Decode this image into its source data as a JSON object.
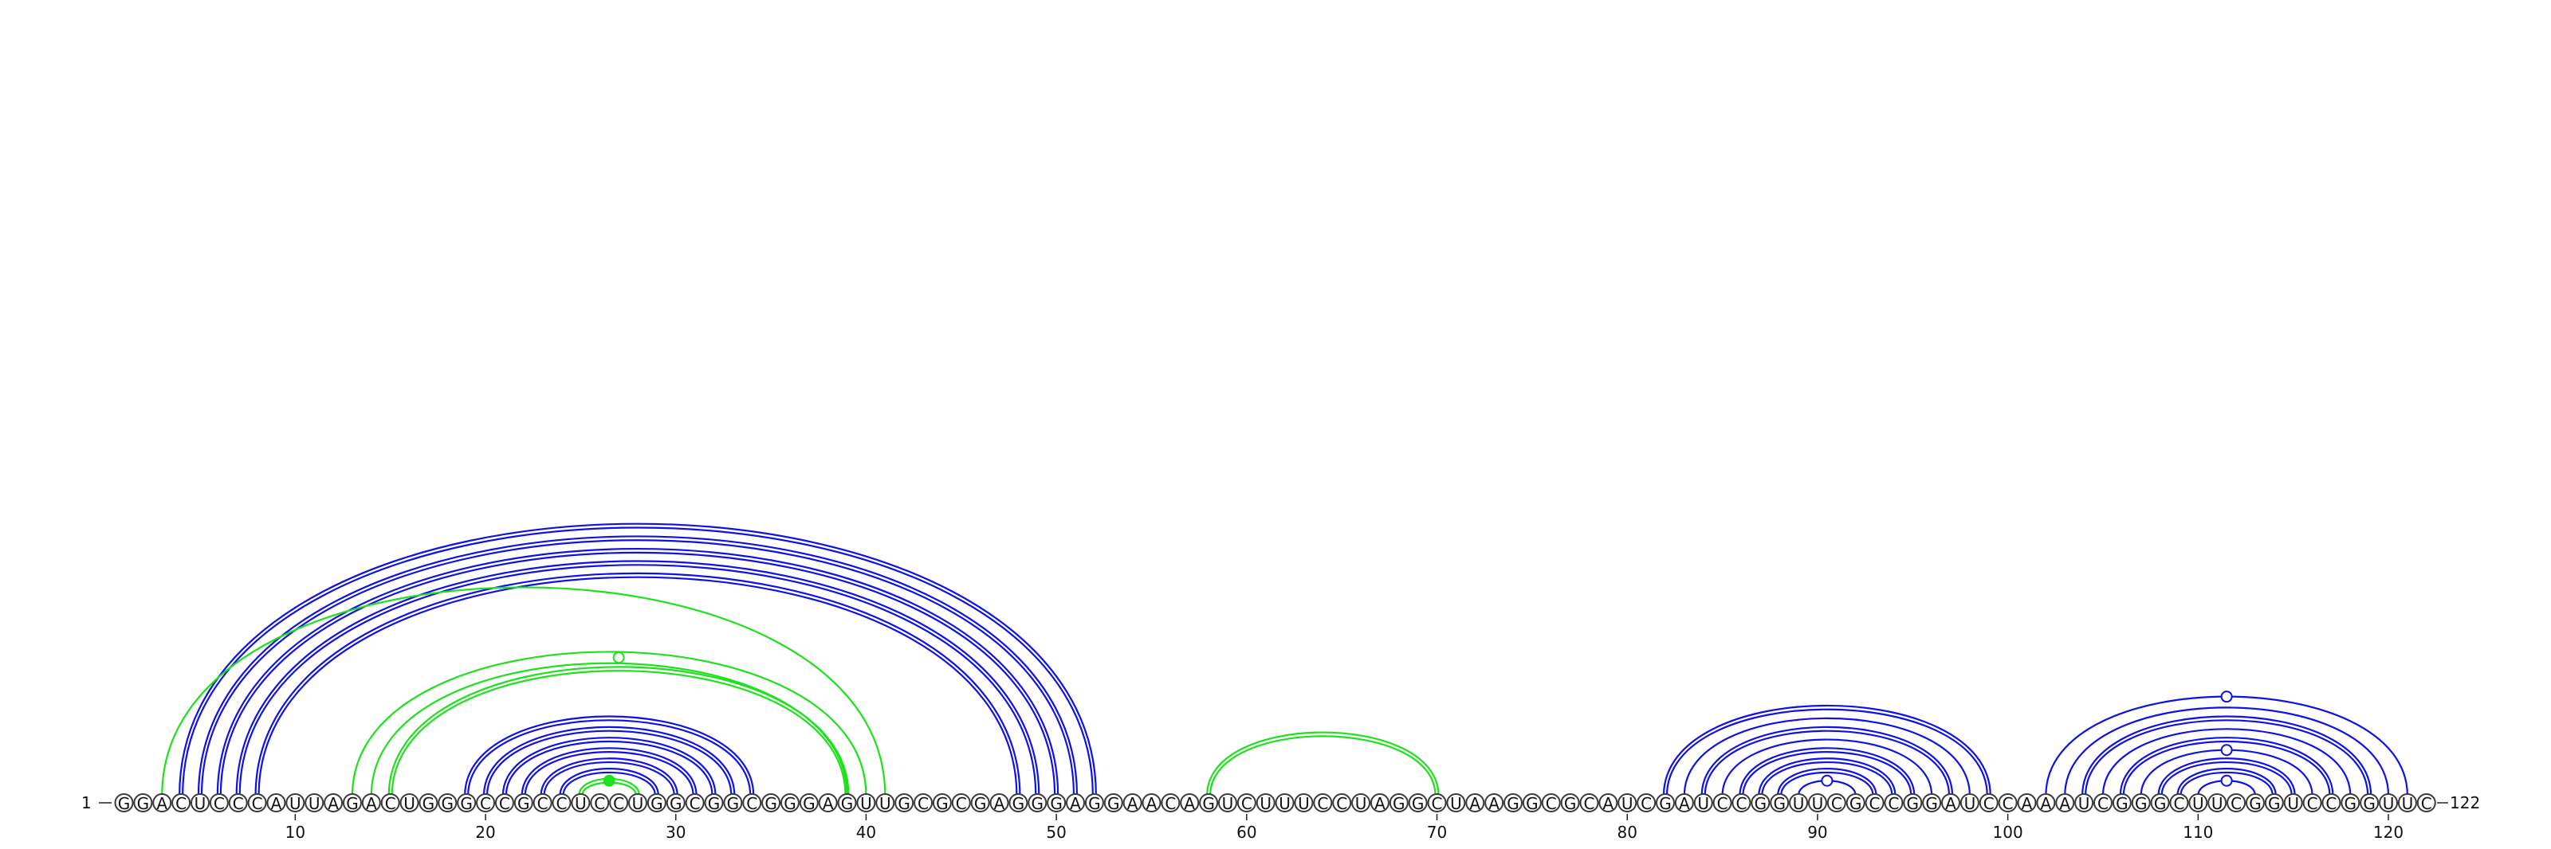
{
  "sequence": "GGACUCCCAUUAGACUGGGCCGCCUCCUGGCGGCGGGAGUUGCGCGAGGGAGGAACAGUCUUUCCUAGGCUAAGGCGCAUCGAUCCGGUUCGCCGGAUCCAAAUCGGGCUUCGGUCCGGUUC",
  "start_label": "1",
  "end_label": "122",
  "tick_labels": [
    "10",
    "20",
    "30",
    "40",
    "50",
    "60",
    "70",
    "80",
    "90",
    "100",
    "110",
    "120"
  ],
  "colors": {
    "blue": "#1010e8",
    "green": "#1ee11e"
  },
  "arcs": [
    {
      "i": 4,
      "j": 52,
      "color": "blue",
      "lines": 2
    },
    {
      "i": 5,
      "j": 51,
      "color": "blue",
      "lines": 2
    },
    {
      "i": 6,
      "j": 50,
      "color": "blue",
      "lines": 2
    },
    {
      "i": 7,
      "j": 49,
      "color": "blue",
      "lines": 2
    },
    {
      "i": 8,
      "j": 48,
      "color": "blue",
      "lines": 2
    },
    {
      "i": 3,
      "j": 41,
      "color": "green",
      "lines": 1
    },
    {
      "i": 13,
      "j": 40,
      "color": "green",
      "lines": 1
    },
    {
      "i": 14,
      "j": 39,
      "color": "green",
      "lines": 1
    },
    {
      "i": 15,
      "j": 39,
      "color": "green",
      "lines": 2
    },
    {
      "i": 19,
      "j": 34,
      "color": "blue",
      "lines": 2
    },
    {
      "i": 20,
      "j": 33,
      "color": "blue",
      "lines": 2
    },
    {
      "i": 21,
      "j": 32,
      "color": "blue",
      "lines": 2
    },
    {
      "i": 22,
      "j": 31,
      "color": "blue",
      "lines": 2
    },
    {
      "i": 23,
      "j": 30,
      "color": "blue",
      "lines": 2
    },
    {
      "i": 24,
      "j": 29,
      "color": "blue",
      "lines": 2
    },
    {
      "i": 25,
      "j": 28,
      "color": "green",
      "lines": 2
    },
    {
      "i": 58,
      "j": 70,
      "color": "green",
      "lines": 2
    },
    {
      "i": 82,
      "j": 99,
      "color": "blue",
      "lines": 2
    },
    {
      "i": 83,
      "j": 98,
      "color": "blue",
      "lines": 1
    },
    {
      "i": 84,
      "j": 97,
      "color": "blue",
      "lines": 2
    },
    {
      "i": 85,
      "j": 96,
      "color": "blue",
      "lines": 1
    },
    {
      "i": 86,
      "j": 95,
      "color": "blue",
      "lines": 2
    },
    {
      "i": 87,
      "j": 94,
      "color": "blue",
      "lines": 2
    },
    {
      "i": 88,
      "j": 93,
      "color": "blue",
      "lines": 2
    },
    {
      "i": 89,
      "j": 92,
      "color": "blue",
      "lines": 1
    },
    {
      "i": 102,
      "j": 121,
      "color": "blue",
      "lines": 1
    },
    {
      "i": 103,
      "j": 120,
      "color": "blue",
      "lines": 1
    },
    {
      "i": 104,
      "j": 119,
      "color": "blue",
      "lines": 2
    },
    {
      "i": 105,
      "j": 118,
      "color": "blue",
      "lines": 1
    },
    {
      "i": 106,
      "j": 117,
      "color": "blue",
      "lines": 2
    },
    {
      "i": 107,
      "j": 116,
      "color": "blue",
      "lines": 1
    },
    {
      "i": 108,
      "j": 115,
      "color": "blue",
      "lines": 2
    },
    {
      "i": 109,
      "j": 114,
      "color": "blue",
      "lines": 2
    },
    {
      "i": 110,
      "j": 113,
      "color": "blue",
      "lines": 1
    }
  ],
  "markers": [
    {
      "i": 14,
      "j": 40,
      "color": "green",
      "filled": false
    },
    {
      "i": 25,
      "j": 28,
      "color": "green",
      "filled": true
    },
    {
      "i": 89,
      "j": 92,
      "color": "blue",
      "filled": false
    },
    {
      "i": 102,
      "j": 121,
      "color": "blue",
      "filled": false
    },
    {
      "i": 107,
      "j": 116,
      "color": "blue",
      "filled": false
    },
    {
      "i": 110,
      "j": 113,
      "color": "blue",
      "filled": false
    }
  ]
}
